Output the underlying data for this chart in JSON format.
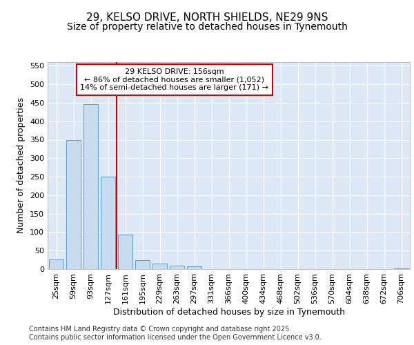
{
  "title1": "29, KELSO DRIVE, NORTH SHIELDS, NE29 9NS",
  "title2": "Size of property relative to detached houses in Tynemouth",
  "xlabel": "Distribution of detached houses by size in Tynemouth",
  "ylabel": "Number of detached properties",
  "categories": [
    "25sqm",
    "59sqm",
    "93sqm",
    "127sqm",
    "161sqm",
    "195sqm",
    "229sqm",
    "263sqm",
    "297sqm",
    "331sqm",
    "366sqm",
    "400sqm",
    "434sqm",
    "468sqm",
    "502sqm",
    "536sqm",
    "570sqm",
    "604sqm",
    "638sqm",
    "672sqm",
    "706sqm"
  ],
  "values": [
    27,
    350,
    447,
    250,
    93,
    25,
    15,
    10,
    8,
    0,
    0,
    0,
    0,
    0,
    0,
    0,
    0,
    0,
    0,
    0,
    2
  ],
  "bar_color": "#c8dcf0",
  "bar_edge_color": "#5b9bd5",
  "vline_index": 4,
  "vline_color": "#cc0000",
  "annotation_text": "29 KELSO DRIVE: 156sqm\n← 86% of detached houses are smaller (1,052)\n14% of semi-detached houses are larger (171) →",
  "annotation_box_facecolor": "#ffffff",
  "annotation_box_edgecolor": "#cc0000",
  "ylim": [
    0,
    560
  ],
  "yticks": [
    0,
    50,
    100,
    150,
    200,
    250,
    300,
    350,
    400,
    450,
    500,
    550
  ],
  "background_color": "#ffffff",
  "plot_background": "#dce8f5",
  "grid_color": "#ffffff",
  "footer": "Contains HM Land Registry data © Crown copyright and database right 2025.\nContains public sector information licensed under the Open Government Licence v3.0.",
  "title1_fontsize": 11,
  "title2_fontsize": 10,
  "xlabel_fontsize": 9,
  "ylabel_fontsize": 9,
  "tick_fontsize": 8,
  "annot_fontsize": 8,
  "footer_fontsize": 7
}
